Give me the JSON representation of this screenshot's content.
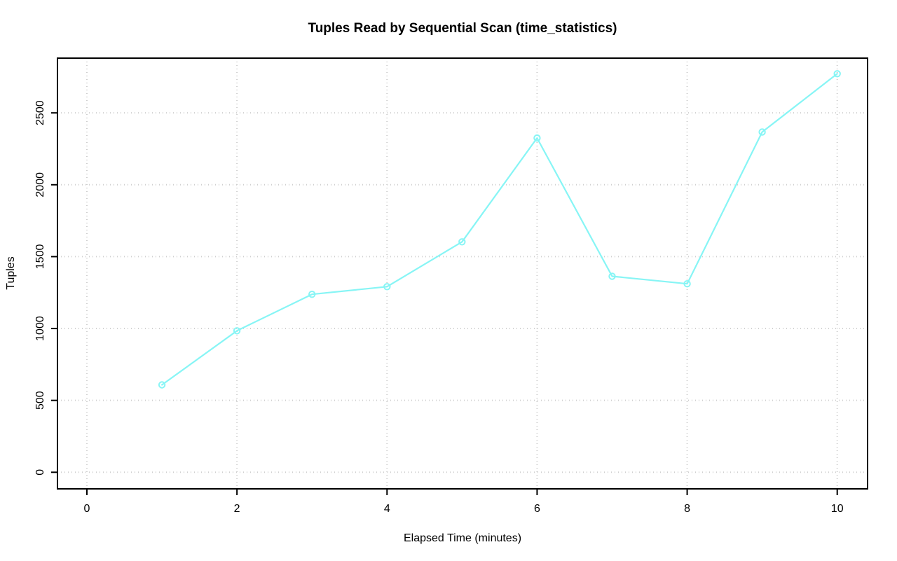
{
  "chart_data": {
    "type": "line",
    "title": "Tuples Read by Sequential Scan (time_statistics)",
    "xlabel": "Elapsed Time (minutes)",
    "ylabel": "Tuples",
    "x": [
      1,
      2,
      3,
      4,
      5,
      6,
      7,
      8,
      9,
      10
    ],
    "values": [
      608,
      984,
      1238,
      1291,
      1603,
      2325,
      1363,
      1311,
      2367,
      2772
    ],
    "xticks": [
      0,
      2,
      4,
      6,
      8,
      10
    ],
    "yticks": [
      0,
      500,
      1000,
      1500,
      2000,
      2500
    ],
    "xlim": [
      0,
      10
    ],
    "ylim": [
      0,
      2800
    ],
    "grid": "dotted",
    "legend": "none",
    "marker": "open-circle",
    "colors": {
      "line": "#87f5f5",
      "marker": "#87f5f5",
      "grid": "#cfcfcf",
      "axis": "#000000",
      "text": "#000000",
      "background": "#ffffff"
    }
  }
}
